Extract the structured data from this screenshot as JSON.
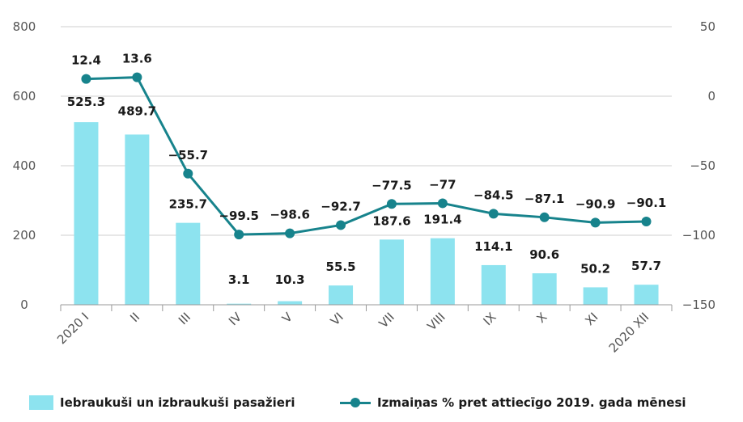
{
  "colors": {
    "bar": "#8de3ef",
    "line": "#17838c",
    "grid": "#cfcfcf",
    "axis": "#999999"
  },
  "chart_data": {
    "type": "bar",
    "categories": [
      "2020 I",
      "II",
      "III",
      "IV",
      "V",
      "VI",
      "VII",
      "VIII",
      "IX",
      "X",
      "XI",
      "2020 XII"
    ],
    "series": [
      {
        "name": "Iebraukuši un izbraukuši pasažieri",
        "type": "bar",
        "axis": "left",
        "values": [
          525.3,
          489.7,
          235.7,
          3.1,
          10.3,
          55.5,
          187.6,
          191.4,
          114.1,
          90.6,
          50.2,
          57.7
        ],
        "labels": [
          "525.3",
          "489.7",
          "235.7",
          "3.1",
          "10.3",
          "55.5",
          "187.6",
          "191.4",
          "114.1",
          "90.6",
          "50.2",
          "57.7"
        ]
      },
      {
        "name": "Izmaiņas % pret attiecīgo 2019. gada mēnesi",
        "type": "line",
        "axis": "right",
        "values": [
          12.4,
          13.6,
          -55.7,
          -99.5,
          -98.6,
          -92.7,
          -77.5,
          -77,
          -84.5,
          -87.1,
          -90.9,
          -90.1
        ],
        "labels": [
          "12.4",
          "13.6",
          "−55.7",
          "−99.5",
          "−98.6",
          "−92.7",
          "−77.5",
          "−77",
          "−84.5",
          "−87.1",
          "−90.9",
          "−90.1"
        ]
      }
    ],
    "y_left": {
      "range": [
        0,
        800
      ],
      "ticks": [
        "0",
        "200",
        "400",
        "600",
        "800"
      ]
    },
    "y_right": {
      "range": [
        -150,
        50
      ],
      "ticks": [
        "−150",
        "−100",
        "−50",
        "0",
        "50"
      ]
    },
    "grid": true,
    "legend_position": "bottom"
  }
}
